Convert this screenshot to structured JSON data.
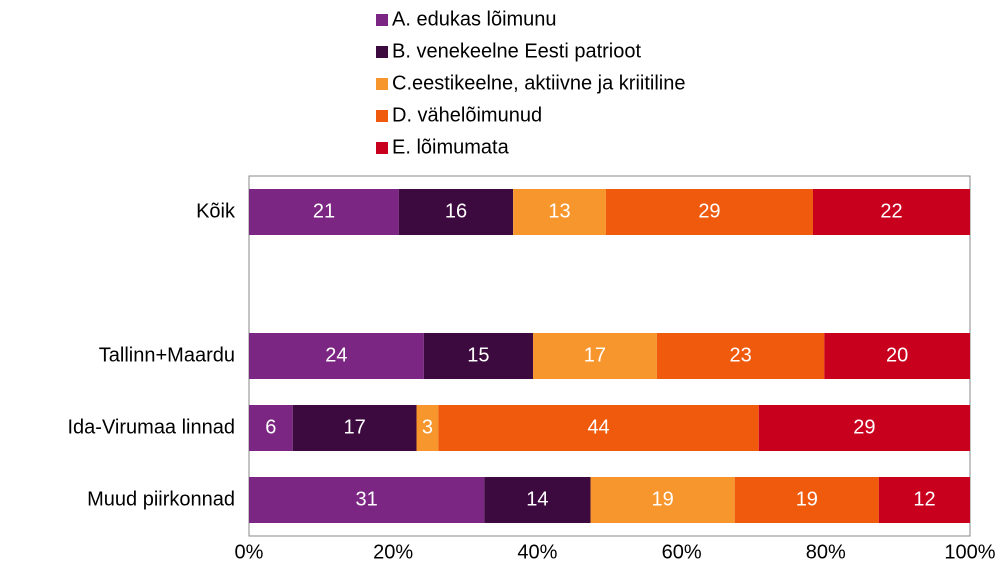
{
  "chart_data": {
    "type": "bar",
    "orientation": "horizontal",
    "stacked": "percent",
    "categories": [
      "Kõik",
      null,
      "Tallinn+Maardu",
      "Ida-Virumaa linnad",
      "Muud piirkonnad"
    ],
    "series": [
      {
        "name": "A. edukas lõimunu",
        "color": "#7b2682",
        "values": [
          21,
          null,
          24,
          6,
          31
        ]
      },
      {
        "name": "B. venekeelne Eesti patrioot",
        "color": "#3d0a40",
        "values": [
          16,
          null,
          15,
          17,
          14
        ]
      },
      {
        "name": "C.eestikeelne, aktiivne ja kriitiline",
        "color": "#f7962d",
        "values": [
          13,
          null,
          17,
          3,
          19
        ]
      },
      {
        "name": "D. vähelõimunud",
        "color": "#ef5a0c",
        "values": [
          29,
          null,
          23,
          44,
          19
        ]
      },
      {
        "name": "E. lõimumata",
        "color": "#c8001e",
        "values": [
          22,
          null,
          20,
          29,
          12
        ]
      }
    ],
    "xlim": [
      0,
      100
    ],
    "xticks": [
      {
        "value": 0,
        "label": "0%"
      },
      {
        "value": 20,
        "label": "20%"
      },
      {
        "value": 40,
        "label": "40%"
      },
      {
        "value": 60,
        "label": "60%"
      },
      {
        "value": 80,
        "label": "80%"
      },
      {
        "value": 100,
        "label": "100%"
      }
    ],
    "legend": "top"
  }
}
